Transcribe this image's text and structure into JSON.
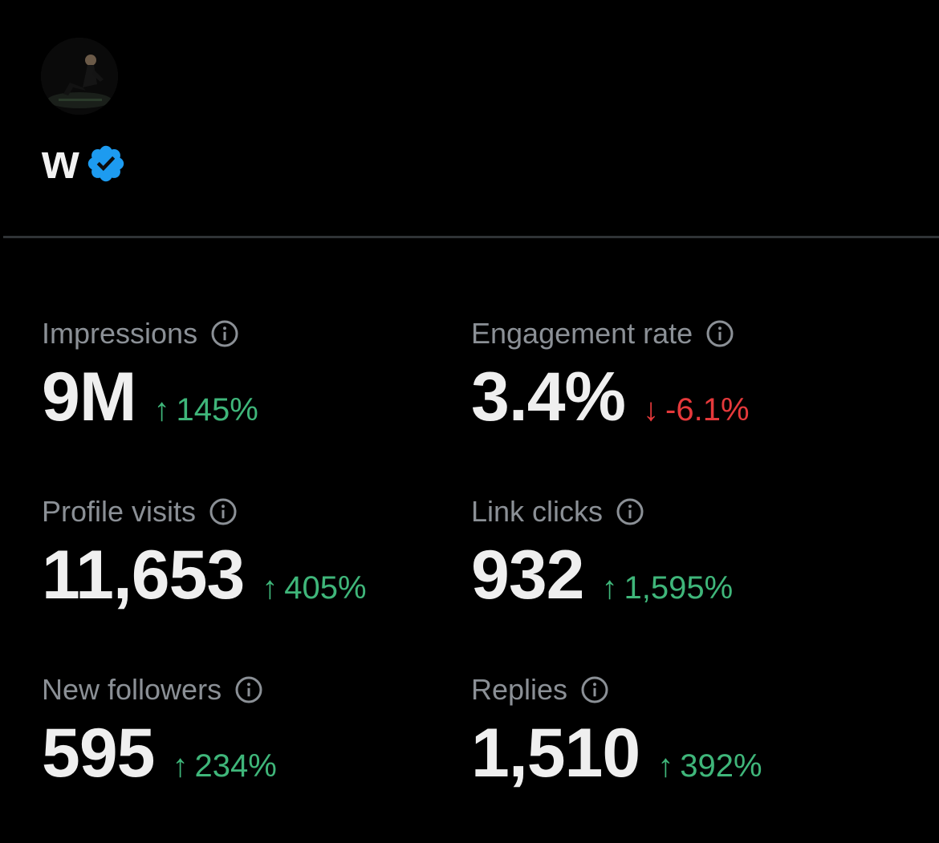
{
  "profile": {
    "display_name": "w",
    "verified": true,
    "verified_color": "#1d9bf0",
    "avatar_icon": "profile-photo"
  },
  "metrics": [
    {
      "label": "Impressions",
      "value": "9M",
      "arrow": "↑",
      "change": "145%",
      "direction": "up",
      "info_icon": "info-icon"
    },
    {
      "label": "Engagement rate",
      "value": "3.4%",
      "arrow": "↓",
      "change": "-6.1%",
      "direction": "down",
      "info_icon": "info-icon"
    },
    {
      "label": "Profile visits",
      "value": "11,653",
      "arrow": "↑",
      "change": "405%",
      "direction": "up",
      "info_icon": "info-icon"
    },
    {
      "label": "Link clicks",
      "value": "932",
      "arrow": "↑",
      "change": "1,595%",
      "direction": "up",
      "info_icon": "info-icon"
    },
    {
      "label": "New followers",
      "value": "595",
      "arrow": "↑",
      "change": "234%",
      "direction": "up",
      "info_icon": "info-icon"
    },
    {
      "label": "Replies",
      "value": "1,510",
      "arrow": "↑",
      "change": "392%",
      "direction": "up",
      "info_icon": "info-icon"
    }
  ],
  "colors": {
    "background": "#000000",
    "positive": "#3fb67a",
    "negative": "#e5393b",
    "label": "#8b9096",
    "value": "#efefef"
  }
}
